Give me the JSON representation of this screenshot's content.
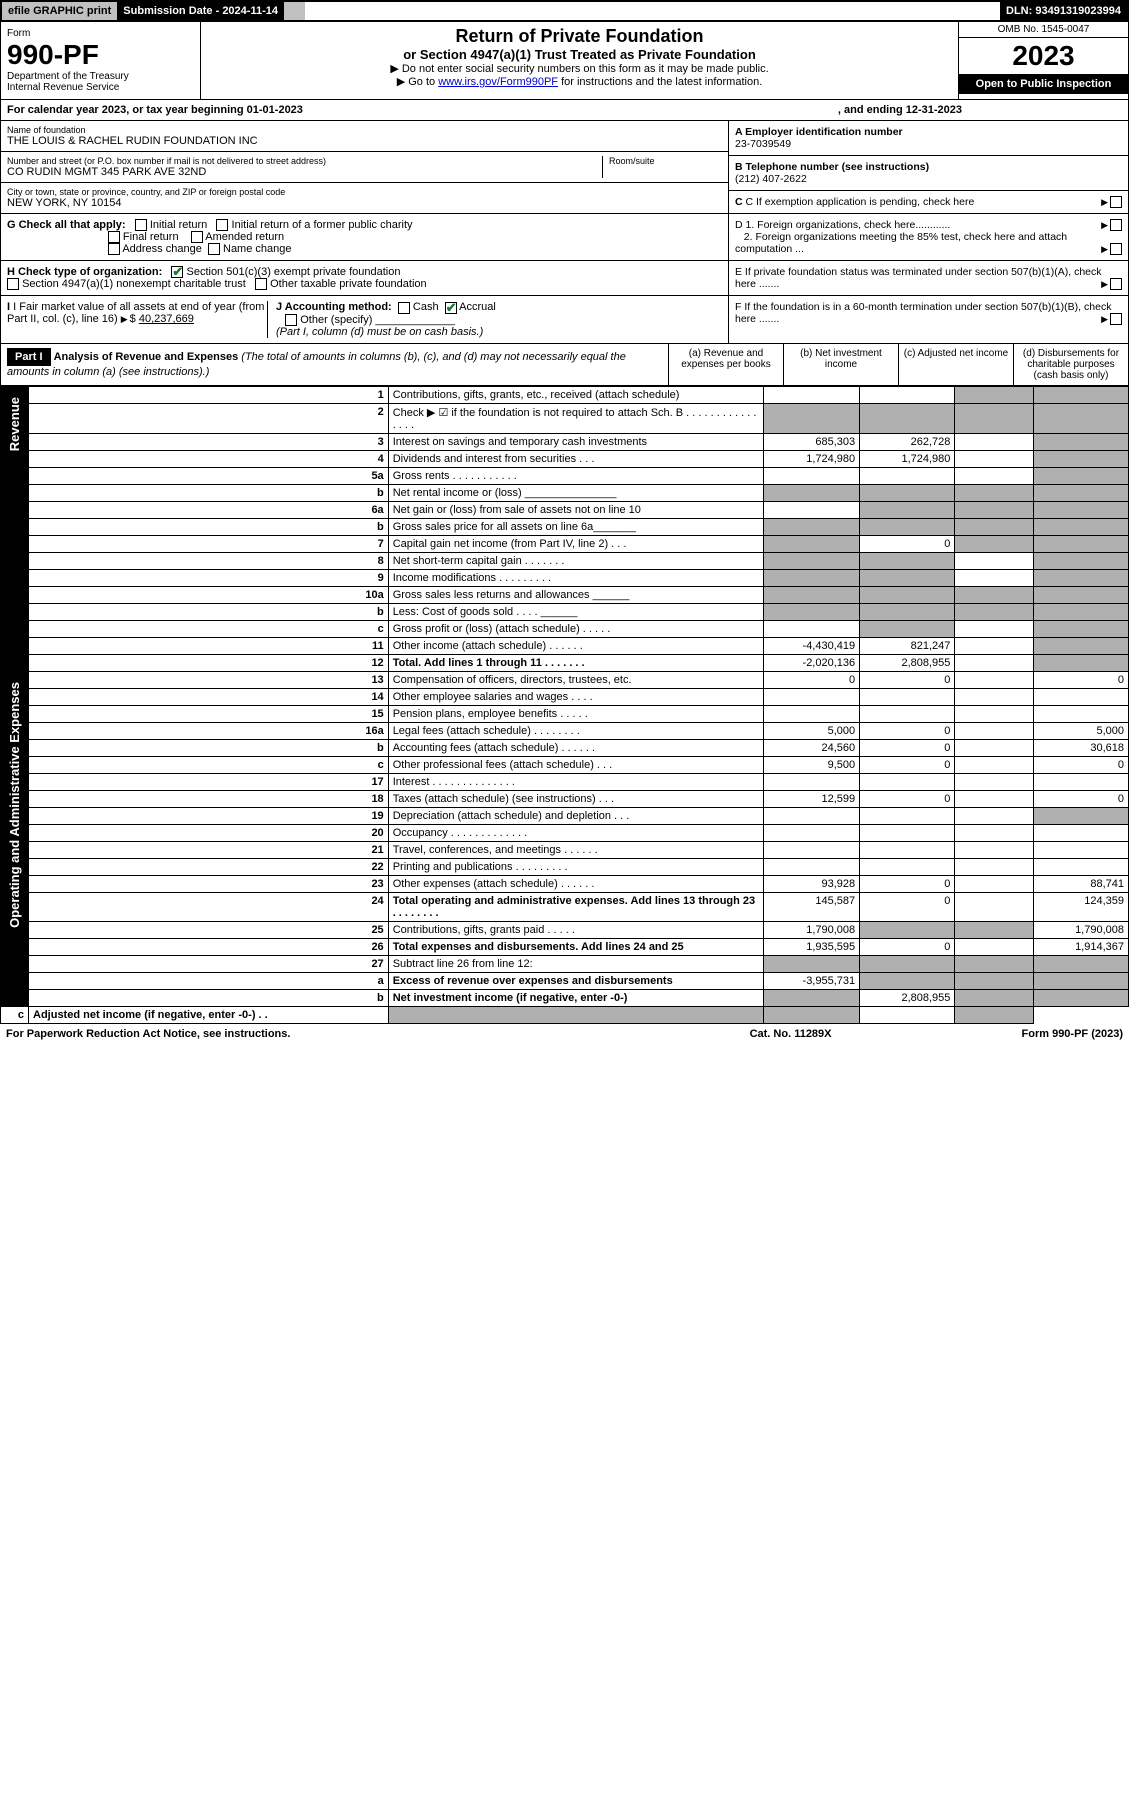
{
  "topbar": {
    "efile": "efile GRAPHIC print",
    "subdate_label": "Submission Date - 2024-11-14",
    "dln": "DLN: 93491319023994"
  },
  "header": {
    "form_label": "Form",
    "form_num": "990-PF",
    "dept": "Department of the Treasury",
    "irs": "Internal Revenue Service",
    "title_main": "Return of Private Foundation",
    "title_sub": "or Section 4947(a)(1) Trust Treated as Private Foundation",
    "note1": "▶ Do not enter social security numbers on this form as it may be made public.",
    "note2_pre": "▶ Go to ",
    "note2_link": "www.irs.gov/Form990PF",
    "note2_post": " for instructions and the latest information.",
    "omb": "OMB No. 1545-0047",
    "year": "2023",
    "open_pub": "Open to Public Inspection"
  },
  "calendar": {
    "text": "For calendar year 2023, or tax year beginning 01-01-2023",
    "ending": ", and ending 12-31-2023"
  },
  "id": {
    "name_label": "Name of foundation",
    "name": "THE LOUIS & RACHEL RUDIN FOUNDATION INC",
    "addr_label": "Number and street (or P.O. box number if mail is not delivered to street address)",
    "addr": "CO RUDIN MGMT 345 PARK AVE 32ND",
    "room_label": "Room/suite",
    "city_label": "City or town, state or province, country, and ZIP or foreign postal code",
    "city": "NEW YORK, NY  10154",
    "a_label": "A Employer identification number",
    "a_val": "23-7039549",
    "b_label": "B Telephone number (see instructions)",
    "b_val": "(212) 407-2622",
    "c_label": "C If exemption application is pending, check here",
    "d1": "D 1. Foreign organizations, check here............",
    "d2": "2. Foreign organizations meeting the 85% test, check here and attach computation ...",
    "e": "E  If private foundation status was terminated under section 507(b)(1)(A), check here .......",
    "f": "F  If the foundation is in a 60-month termination under section 507(b)(1)(B), check here .......",
    "g_label": "G Check all that apply:",
    "g_opts": [
      "Initial return",
      "Initial return of a former public charity",
      "Final return",
      "Amended return",
      "Address change",
      "Name change"
    ],
    "h_label": "H Check type of organization:",
    "h1": "Section 501(c)(3) exempt private foundation",
    "h2": "Section 4947(a)(1) nonexempt charitable trust",
    "h3": "Other taxable private foundation",
    "i_label": "I Fair market value of all assets at end of year (from Part II, col. (c), line 16)",
    "i_val": "40,237,669",
    "j_label": "J Accounting method:",
    "j_cash": "Cash",
    "j_accrual": "Accrual",
    "j_other": "Other (specify)",
    "j_note": "(Part I, column (d) must be on cash basis.)"
  },
  "part1": {
    "label": "Part I",
    "title": "Analysis of Revenue and Expenses",
    "title_note": " (The total of amounts in columns (b), (c), and (d) may not necessarily equal the amounts in column (a) (see instructions).)",
    "col_a": "(a)  Revenue and expenses per books",
    "col_b": "(b)  Net investment income",
    "col_c": "(c)  Adjusted net income",
    "col_d": "(d)  Disbursements for charitable purposes (cash basis only)"
  },
  "side1": "Revenue",
  "side2": "Operating and Administrative Expenses",
  "rows": [
    {
      "ln": "1",
      "desc": "Contributions, gifts, grants, etc., received (attach schedule)",
      "a": "",
      "b": "",
      "c": "",
      "d": "",
      "shade_cd": true
    },
    {
      "ln": "2",
      "desc": "Check ▶ ☑ if the foundation is not required to attach Sch. B   .  .  .  .  .  .  .  .  .  .  .  .  .  .  .  .",
      "a": "",
      "b": "",
      "c": "",
      "d": "",
      "shade_all": true
    },
    {
      "ln": "3",
      "desc": "Interest on savings and temporary cash investments",
      "a": "685,303",
      "b": "262,728",
      "c": "",
      "d": "",
      "shade_d": true
    },
    {
      "ln": "4",
      "desc": "Dividends and interest from securities   .  .  .",
      "a": "1,724,980",
      "b": "1,724,980",
      "c": "",
      "d": "",
      "shade_d": true
    },
    {
      "ln": "5a",
      "desc": "Gross rents   .  .  .  .  .  .  .  .  .  .  .",
      "a": "",
      "b": "",
      "c": "",
      "d": "",
      "shade_d": true
    },
    {
      "ln": "b",
      "desc": "Net rental income or (loss)   _______________",
      "a": "",
      "b": "",
      "c": "",
      "d": "",
      "shade_all": true
    },
    {
      "ln": "6a",
      "desc": "Net gain or (loss) from sale of assets not on line 10",
      "a": "",
      "b": "",
      "c": "",
      "d": "",
      "shade_bcd": true
    },
    {
      "ln": "b",
      "desc": "Gross sales price for all assets on line 6a_______",
      "a": "",
      "b": "",
      "c": "",
      "d": "",
      "shade_all": true
    },
    {
      "ln": "7",
      "desc": "Capital gain net income (from Part IV, line 2)   .  .  .",
      "a": "",
      "b": "0",
      "c": "",
      "d": "",
      "shade_a": true,
      "shade_cd": true
    },
    {
      "ln": "8",
      "desc": "Net short-term capital gain   .  .  .  .  .  .  .",
      "a": "",
      "b": "",
      "c": "",
      "d": "",
      "shade_ab": true,
      "shade_d": true
    },
    {
      "ln": "9",
      "desc": "Income modifications  .  .  .  .  .  .  .  .  .",
      "a": "",
      "b": "",
      "c": "",
      "d": "",
      "shade_ab": true,
      "shade_d": true
    },
    {
      "ln": "10a",
      "desc": "Gross sales less returns and allowances  ______",
      "a": "",
      "b": "",
      "c": "",
      "d": "",
      "shade_all": true
    },
    {
      "ln": "b",
      "desc": "Less: Cost of goods sold   .  .  .  .   ______",
      "a": "",
      "b": "",
      "c": "",
      "d": "",
      "shade_all": true
    },
    {
      "ln": "c",
      "desc": "Gross profit or (loss) (attach schedule)   .  .  .  .  .",
      "a": "",
      "b": "",
      "c": "",
      "d": "",
      "shade_b": true,
      "shade_d": true
    },
    {
      "ln": "11",
      "desc": "Other income (attach schedule)   .  .  .  .  .  .",
      "a": "-4,430,419",
      "b": "821,247",
      "c": "",
      "d": "",
      "shade_d": true
    },
    {
      "ln": "12",
      "desc": "Total. Add lines 1 through 11   .  .  .  .  .  .  .",
      "a": "-2,020,136",
      "b": "2,808,955",
      "c": "",
      "d": "",
      "bold": true,
      "shade_d": true
    },
    {
      "ln": "13",
      "desc": "Compensation of officers, directors, trustees, etc.",
      "a": "0",
      "b": "0",
      "c": "",
      "d": "0"
    },
    {
      "ln": "14",
      "desc": "Other employee salaries and wages   .  .  .  .",
      "a": "",
      "b": "",
      "c": "",
      "d": ""
    },
    {
      "ln": "15",
      "desc": "Pension plans, employee benefits  .  .  .  .  .",
      "a": "",
      "b": "",
      "c": "",
      "d": ""
    },
    {
      "ln": "16a",
      "desc": "Legal fees (attach schedule) .  .  .  .  .  .  .  .",
      "a": "5,000",
      "b": "0",
      "c": "",
      "d": "5,000"
    },
    {
      "ln": "b",
      "desc": "Accounting fees (attach schedule) .  .  .  .  .  .",
      "a": "24,560",
      "b": "0",
      "c": "",
      "d": "30,618"
    },
    {
      "ln": "c",
      "desc": "Other professional fees (attach schedule)   .  .  .",
      "a": "9,500",
      "b": "0",
      "c": "",
      "d": "0"
    },
    {
      "ln": "17",
      "desc": "Interest .  .  .  .  .  .  .  .  .  .  .  .  .  .",
      "a": "",
      "b": "",
      "c": "",
      "d": ""
    },
    {
      "ln": "18",
      "desc": "Taxes (attach schedule) (see instructions)   .  .  .",
      "a": "12,599",
      "b": "0",
      "c": "",
      "d": "0"
    },
    {
      "ln": "19",
      "desc": "Depreciation (attach schedule) and depletion   .  .  .",
      "a": "",
      "b": "",
      "c": "",
      "d": "",
      "shade_d": true
    },
    {
      "ln": "20",
      "desc": "Occupancy .  .  .  .  .  .  .  .  .  .  .  .  .",
      "a": "",
      "b": "",
      "c": "",
      "d": ""
    },
    {
      "ln": "21",
      "desc": "Travel, conferences, and meetings .  .  .  .  .  .",
      "a": "",
      "b": "",
      "c": "",
      "d": ""
    },
    {
      "ln": "22",
      "desc": "Printing and publications .  .  .  .  .  .  .  .  .",
      "a": "",
      "b": "",
      "c": "",
      "d": ""
    },
    {
      "ln": "23",
      "desc": "Other expenses (attach schedule) .  .  .  .  .  .",
      "a": "93,928",
      "b": "0",
      "c": "",
      "d": "88,741"
    },
    {
      "ln": "24",
      "desc": "Total operating and administrative expenses. Add lines 13 through 23   .  .  .  .  .  .  .  .",
      "a": "145,587",
      "b": "0",
      "c": "",
      "d": "124,359",
      "bold": true
    },
    {
      "ln": "25",
      "desc": "Contributions, gifts, grants paid   .  .  .  .  .",
      "a": "1,790,008",
      "b": "",
      "c": "",
      "d": "1,790,008",
      "shade_bc": true
    },
    {
      "ln": "26",
      "desc": "Total expenses and disbursements. Add lines 24 and 25",
      "a": "1,935,595",
      "b": "0",
      "c": "",
      "d": "1,914,367",
      "bold": true
    },
    {
      "ln": "27",
      "desc": "Subtract line 26 from line 12:",
      "a": "",
      "b": "",
      "c": "",
      "d": "",
      "shade_all": true
    },
    {
      "ln": "a",
      "desc": "Excess of revenue over expenses and disbursements",
      "a": "-3,955,731",
      "b": "",
      "c": "",
      "d": "",
      "bold": true,
      "shade_bcd": true
    },
    {
      "ln": "b",
      "desc": "Net investment income (if negative, enter -0-)",
      "a": "",
      "b": "2,808,955",
      "c": "",
      "d": "",
      "bold": true,
      "shade_a": true,
      "shade_cd": true
    },
    {
      "ln": "c",
      "desc": "Adjusted net income (if negative, enter -0-)   .  .",
      "a": "",
      "b": "",
      "c": "",
      "d": "",
      "bold": true,
      "shade_ab": true,
      "shade_d": true
    }
  ],
  "footer": {
    "left": "For Paperwork Reduction Act Notice, see instructions.",
    "mid": "Cat. No. 11289X",
    "right": "Form 990-PF (2023)"
  }
}
